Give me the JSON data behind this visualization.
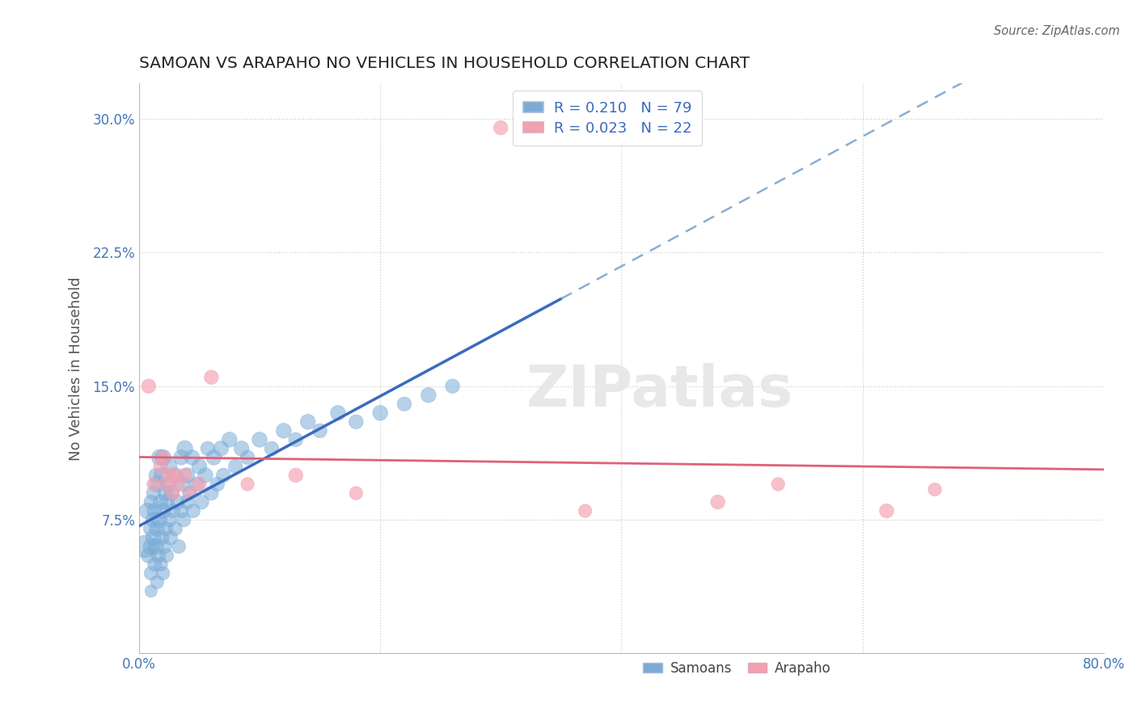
{
  "title": "SAMOAN VS ARAPAHO NO VEHICLES IN HOUSEHOLD CORRELATION CHART",
  "source": "Source: ZipAtlas.com",
  "ylabel": "No Vehicles in Household",
  "xlim": [
    0.0,
    0.8
  ],
  "ylim": [
    0.0,
    0.32
  ],
  "xticks": [
    0.0,
    0.2,
    0.4,
    0.6,
    0.8
  ],
  "xticklabels": [
    "0.0%",
    "",
    "",
    "",
    "80.0%"
  ],
  "yticks": [
    0.0,
    0.075,
    0.15,
    0.225,
    0.3
  ],
  "yticklabels": [
    "",
    "7.5%",
    "15.0%",
    "22.5%",
    "30.0%"
  ],
  "grid_color": "#cccccc",
  "background_color": "#ffffff",
  "samoan_color": "#7aacd6",
  "arapaho_color": "#f4a0b0",
  "samoan_R": 0.21,
  "samoan_N": 79,
  "arapaho_R": 0.023,
  "arapaho_N": 22,
  "samoan_line_color": "#3a6abf",
  "arapaho_line_color": "#e0607a",
  "trend_dash_color": "#89aed4",
  "watermark": "ZIPatlas",
  "samoan_x": [
    0.005,
    0.007,
    0.008,
    0.01,
    0.01,
    0.01,
    0.01,
    0.01,
    0.012,
    0.012,
    0.012,
    0.013,
    0.013,
    0.014,
    0.014,
    0.015,
    0.015,
    0.015,
    0.016,
    0.017,
    0.017,
    0.018,
    0.018,
    0.019,
    0.019,
    0.02,
    0.02,
    0.02,
    0.021,
    0.022,
    0.022,
    0.023,
    0.023,
    0.024,
    0.025,
    0.025,
    0.026,
    0.027,
    0.028,
    0.03,
    0.03,
    0.032,
    0.033,
    0.035,
    0.035,
    0.036,
    0.037,
    0.038,
    0.04,
    0.04,
    0.042,
    0.044,
    0.045,
    0.048,
    0.05,
    0.052,
    0.055,
    0.057,
    0.06,
    0.062,
    0.065,
    0.068,
    0.07,
    0.075,
    0.08,
    0.085,
    0.09,
    0.1,
    0.11,
    0.12,
    0.13,
    0.14,
    0.15,
    0.165,
    0.18,
    0.2,
    0.22,
    0.24,
    0.26
  ],
  "samoan_y": [
    0.06,
    0.08,
    0.055,
    0.045,
    0.06,
    0.07,
    0.085,
    0.035,
    0.065,
    0.075,
    0.09,
    0.05,
    0.08,
    0.06,
    0.1,
    0.04,
    0.07,
    0.095,
    0.055,
    0.075,
    0.11,
    0.05,
    0.085,
    0.065,
    0.1,
    0.045,
    0.08,
    0.11,
    0.06,
    0.09,
    0.07,
    0.085,
    0.055,
    0.095,
    0.075,
    0.105,
    0.065,
    0.09,
    0.08,
    0.07,
    0.1,
    0.085,
    0.06,
    0.11,
    0.08,
    0.095,
    0.075,
    0.115,
    0.085,
    0.1,
    0.09,
    0.11,
    0.08,
    0.095,
    0.105,
    0.085,
    0.1,
    0.115,
    0.09,
    0.11,
    0.095,
    0.115,
    0.1,
    0.12,
    0.105,
    0.115,
    0.11,
    0.12,
    0.115,
    0.125,
    0.12,
    0.13,
    0.125,
    0.135,
    0.13,
    0.135,
    0.14,
    0.145,
    0.15
  ],
  "samoan_sizes": [
    400,
    200,
    180,
    150,
    200,
    180,
    160,
    120,
    200,
    180,
    160,
    150,
    180,
    200,
    160,
    140,
    180,
    200,
    160,
    180,
    200,
    150,
    180,
    160,
    200,
    140,
    180,
    200,
    160,
    180,
    160,
    180,
    150,
    180,
    160,
    200,
    160,
    180,
    160,
    160,
    180,
    160,
    150,
    180,
    160,
    180,
    160,
    200,
    160,
    180,
    160,
    180,
    150,
    160,
    180,
    160,
    180,
    160,
    160,
    180,
    160,
    180,
    160,
    180,
    160,
    180,
    160,
    180,
    160,
    180,
    160,
    180,
    160,
    180,
    160,
    180,
    160,
    180,
    160
  ],
  "arapaho_x": [
    0.008,
    0.012,
    0.018,
    0.02,
    0.022,
    0.025,
    0.028,
    0.03,
    0.032,
    0.038,
    0.042,
    0.05,
    0.06,
    0.09,
    0.13,
    0.18,
    0.3,
    0.37,
    0.48,
    0.53,
    0.62,
    0.66
  ],
  "arapaho_y": [
    0.15,
    0.095,
    0.105,
    0.11,
    0.095,
    0.1,
    0.09,
    0.1,
    0.095,
    0.1,
    0.09,
    0.095,
    0.155,
    0.095,
    0.1,
    0.09,
    0.295,
    0.08,
    0.085,
    0.095,
    0.08,
    0.092
  ],
  "arapaho_sizes": [
    160,
    140,
    160,
    150,
    140,
    160,
    140,
    160,
    140,
    160,
    140,
    160,
    160,
    140,
    160,
    140,
    160,
    140,
    160,
    140,
    160,
    140
  ]
}
